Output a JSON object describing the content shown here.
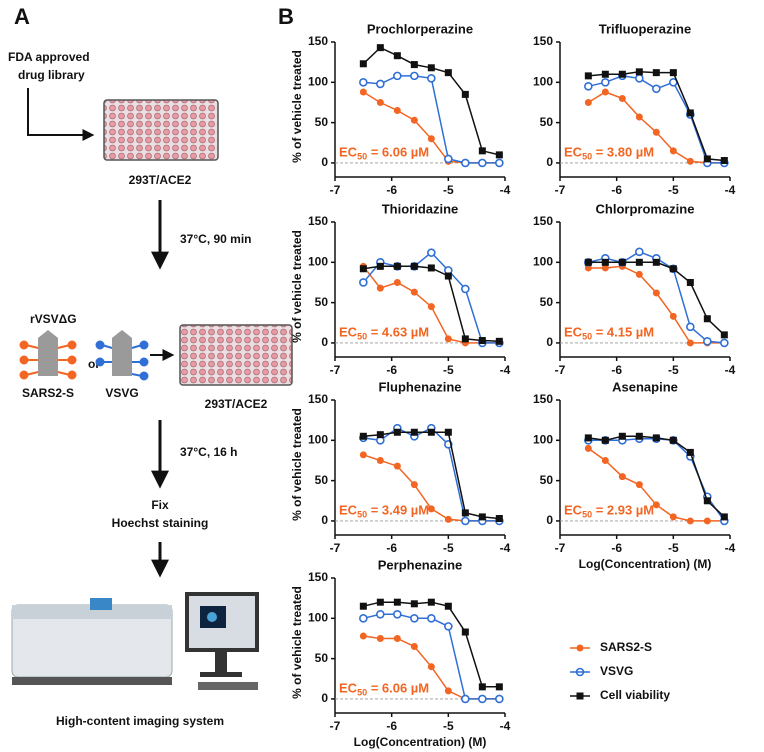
{
  "panel_a": {
    "label": "A",
    "fda": [
      "FDA approved",
      "drug library"
    ],
    "plate1": "293T/ACE2",
    "step1": "37°C, 90 min",
    "virus": "rVSVΔG",
    "or": "or",
    "virus_s": "SARS2-S",
    "virus_g": "VSVG",
    "plate2": "293T/ACE2",
    "step2": "37°C, 16 h",
    "fix": [
      "Fix",
      "Hoechst staining"
    ],
    "system": "High-content imaging system"
  },
  "panel_b": {
    "label": "B"
  },
  "chart_data": [
    {
      "type": "line",
      "title": "Prochlorperazine",
      "ylabel": "% of vehicle treated",
      "x": [
        -6.5,
        -6.2,
        -5.9,
        -5.6,
        -5.3,
        -5.0,
        -4.7,
        -4.4,
        -4.1
      ],
      "series": [
        {
          "name": "SARS2-S",
          "color": "#f26522",
          "values": [
            88,
            75,
            65,
            53,
            30,
            2,
            0,
            0,
            0
          ]
        },
        {
          "name": "VSVG",
          "color": "#2f6fd6",
          "values": [
            100,
            98,
            108,
            108,
            105,
            5,
            0,
            0,
            0
          ]
        },
        {
          "name": "Cell viability",
          "color": "#111111",
          "values": [
            123,
            143,
            133,
            122,
            118,
            112,
            85,
            15,
            10
          ]
        }
      ],
      "xlim": [
        -7,
        -4
      ],
      "xticks": [
        -7,
        -6,
        -5,
        -4
      ],
      "ylim": [
        -10,
        150
      ],
      "yticks": [
        0,
        50,
        100,
        150
      ],
      "annotation": [
        "EC",
        "50",
        " = 6.06 µM"
      ]
    },
    {
      "type": "line",
      "title": "Trifluoperazine",
      "x": [
        -6.5,
        -6.2,
        -5.9,
        -5.6,
        -5.3,
        -5.0,
        -4.7,
        -4.4,
        -4.1
      ],
      "series": [
        {
          "name": "SARS2-S",
          "color": "#f26522",
          "values": [
            75,
            88,
            80,
            57,
            38,
            15,
            2,
            0,
            0
          ]
        },
        {
          "name": "VSVG",
          "color": "#2f6fd6",
          "values": [
            95,
            100,
            108,
            105,
            92,
            100,
            60,
            0,
            0
          ]
        },
        {
          "name": "Cell viability",
          "color": "#111111",
          "values": [
            108,
            110,
            110,
            113,
            112,
            112,
            62,
            5,
            3
          ]
        }
      ],
      "xlim": [
        -7,
        -4
      ],
      "xticks": [
        -7,
        -6,
        -5,
        -4
      ],
      "ylim": [
        -10,
        150
      ],
      "yticks": [
        0,
        50,
        100,
        150
      ],
      "annotation": [
        "EC",
        "50",
        " = 3.80 µM"
      ]
    },
    {
      "type": "line",
      "title": "Thioridazine",
      "ylabel": "% of vehicle treated",
      "x": [
        -6.5,
        -6.2,
        -5.9,
        -5.6,
        -5.3,
        -5.0,
        -4.7,
        -4.4,
        -4.1
      ],
      "series": [
        {
          "name": "SARS2-S",
          "color": "#f26522",
          "values": [
            95,
            68,
            75,
            63,
            45,
            5,
            0,
            0,
            0
          ]
        },
        {
          "name": "VSVG",
          "color": "#2f6fd6",
          "values": [
            75,
            100,
            95,
            95,
            112,
            90,
            67,
            0,
            0
          ]
        },
        {
          "name": "Cell viability",
          "color": "#111111",
          "values": [
            92,
            95,
            95,
            95,
            93,
            83,
            5,
            3,
            2
          ]
        }
      ],
      "xlim": [
        -7,
        -4
      ],
      "xticks": [
        -7,
        -6,
        -5,
        -4
      ],
      "ylim": [
        -10,
        150
      ],
      "yticks": [
        0,
        50,
        100,
        150
      ],
      "annotation": [
        "EC",
        "50",
        " = 4.63 µM"
      ]
    },
    {
      "type": "line",
      "title": "Chlorpromazine",
      "x": [
        -6.5,
        -6.2,
        -5.9,
        -5.6,
        -5.3,
        -5.0,
        -4.7,
        -4.4,
        -4.1
      ],
      "series": [
        {
          "name": "SARS2-S",
          "color": "#f26522",
          "values": [
            93,
            93,
            95,
            85,
            62,
            33,
            0,
            0,
            0
          ]
        },
        {
          "name": "VSVG",
          "color": "#2f6fd6",
          "values": [
            100,
            105,
            100,
            113,
            105,
            92,
            20,
            2,
            0
          ]
        },
        {
          "name": "Cell viability",
          "color": "#111111",
          "values": [
            100,
            100,
            100,
            100,
            100,
            92,
            75,
            30,
            10
          ]
        }
      ],
      "xlim": [
        -7,
        -4
      ],
      "xticks": [
        -7,
        -6,
        -5,
        -4
      ],
      "ylim": [
        -10,
        150
      ],
      "yticks": [
        0,
        50,
        100,
        150
      ],
      "annotation": [
        "EC",
        "50",
        " = 4.15 µM"
      ]
    },
    {
      "type": "line",
      "title": "Fluphenazine",
      "ylabel": "% of vehicle treated",
      "x": [
        -6.5,
        -6.2,
        -5.9,
        -5.6,
        -5.3,
        -5.0,
        -4.7,
        -4.4,
        -4.1
      ],
      "series": [
        {
          "name": "SARS2-S",
          "color": "#f26522",
          "values": [
            82,
            75,
            68,
            45,
            15,
            2,
            0,
            0,
            0
          ]
        },
        {
          "name": "VSVG",
          "color": "#2f6fd6",
          "values": [
            103,
            100,
            115,
            105,
            115,
            95,
            0,
            0,
            0
          ]
        },
        {
          "name": "Cell viability",
          "color": "#111111",
          "values": [
            105,
            107,
            110,
            110,
            110,
            110,
            10,
            5,
            3
          ]
        }
      ],
      "xlim": [
        -7,
        -4
      ],
      "xticks": [
        -7,
        -6,
        -5,
        -4
      ],
      "ylim": [
        -10,
        150
      ],
      "yticks": [
        0,
        50,
        100,
        150
      ],
      "annotation": [
        "EC",
        "50",
        " = 3.49 µM"
      ]
    },
    {
      "type": "line",
      "title": "Asenapine",
      "xlabel": "Log(Concentration) (M)",
      "x": [
        -6.5,
        -6.2,
        -5.9,
        -5.6,
        -5.3,
        -5.0,
        -4.7,
        -4.4,
        -4.1
      ],
      "series": [
        {
          "name": "SARS2-S",
          "color": "#f26522",
          "values": [
            90,
            75,
            55,
            45,
            20,
            5,
            0,
            0,
            0
          ]
        },
        {
          "name": "VSVG",
          "color": "#2f6fd6",
          "values": [
            100,
            100,
            100,
            102,
            102,
            100,
            80,
            30,
            0
          ]
        },
        {
          "name": "Cell viability",
          "color": "#111111",
          "values": [
            103,
            100,
            105,
            105,
            103,
            100,
            85,
            25,
            5
          ]
        }
      ],
      "xlim": [
        -7,
        -4
      ],
      "xticks": [
        -7,
        -6,
        -5,
        -4
      ],
      "ylim": [
        -10,
        150
      ],
      "yticks": [
        0,
        50,
        100,
        150
      ],
      "annotation": [
        "EC",
        "50",
        " = 2.93 µM"
      ]
    },
    {
      "type": "line",
      "title": "Perphenazine",
      "ylabel": "% of vehicle treated",
      "xlabel": "Log(Concentration) (M)",
      "legend": "right",
      "x": [
        -6.5,
        -6.2,
        -5.9,
        -5.6,
        -5.3,
        -5.0,
        -4.7,
        -4.4,
        -4.1
      ],
      "series": [
        {
          "name": "SARS2-S",
          "color": "#f26522",
          "values": [
            78,
            75,
            75,
            65,
            40,
            10,
            0,
            0,
            0
          ]
        },
        {
          "name": "VSVG",
          "color": "#2f6fd6",
          "values": [
            100,
            105,
            105,
            100,
            100,
            90,
            0,
            0,
            0
          ]
        },
        {
          "name": "Cell viability",
          "color": "#111111",
          "values": [
            115,
            120,
            120,
            118,
            120,
            115,
            83,
            15,
            15
          ]
        }
      ],
      "xlim": [
        -7,
        -4
      ],
      "xticks": [
        -7,
        -6,
        -5,
        -4
      ],
      "ylim": [
        -10,
        150
      ],
      "yticks": [
        0,
        50,
        100,
        150
      ],
      "annotation": [
        "EC",
        "50",
        " = 6.06 µM"
      ]
    }
  ]
}
